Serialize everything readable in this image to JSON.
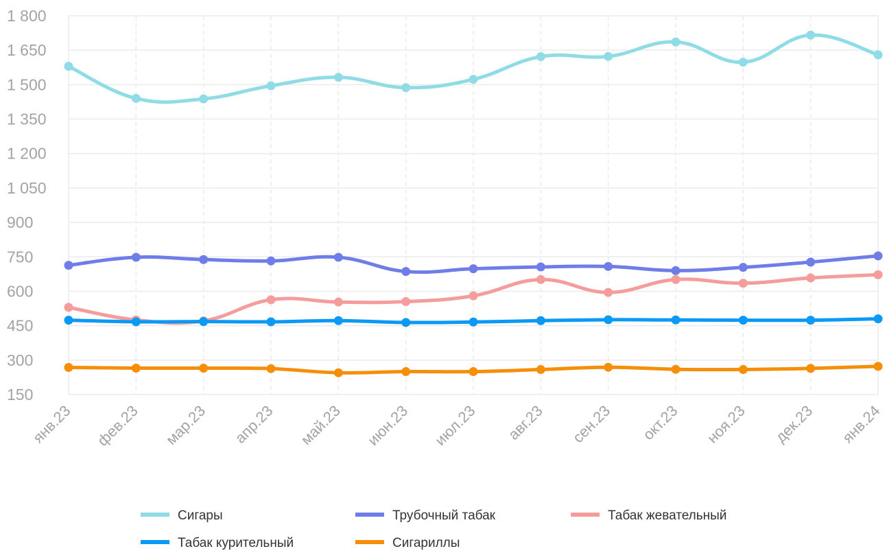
{
  "chart_data": {
    "type": "line",
    "categories": [
      "янв.23",
      "фев.23",
      "мар.23",
      "апр.23",
      "май.23",
      "июн.23",
      "июл.23",
      "авг.23",
      "сен.23",
      "окт.23",
      "ноя.23",
      "дек.23",
      "янв.24"
    ],
    "yticks": [
      "1 800",
      "1 650",
      "1 500",
      "1 350",
      "1 200",
      "1 050",
      "900",
      "750",
      "600",
      "450",
      "300",
      "150"
    ],
    "ylim": [
      150,
      1800
    ],
    "smooth": true,
    "grid": true,
    "legend_position": "bottom",
    "series": [
      {
        "name": "Сигары",
        "color": "#8fdce6",
        "values": [
          1580,
          1440,
          1438,
          1495,
          1532,
          1487,
          1523,
          1622,
          1623,
          1686,
          1598,
          1716,
          1630
        ]
      },
      {
        "name": "Трубочный табак",
        "color": "#6e7de8",
        "values": [
          713,
          748,
          738,
          732,
          748,
          686,
          698,
          706,
          708,
          690,
          704,
          727,
          754
        ]
      },
      {
        "name": "Табак жевательный",
        "color": "#f59c9c",
        "values": [
          530,
          475,
          471,
          563,
          553,
          555,
          580,
          651,
          595,
          651,
          635,
          658,
          672
        ]
      },
      {
        "name": "Табак курительный",
        "color": "#0a99f5",
        "values": [
          474,
          467,
          468,
          467,
          472,
          464,
          466,
          472,
          476,
          475,
          474,
          474,
          480
        ]
      },
      {
        "name": "Сигариллы",
        "color": "#f58f0a",
        "values": [
          268,
          265,
          265,
          263,
          245,
          250,
          250,
          259,
          269,
          260,
          259,
          264,
          273
        ]
      }
    ]
  }
}
